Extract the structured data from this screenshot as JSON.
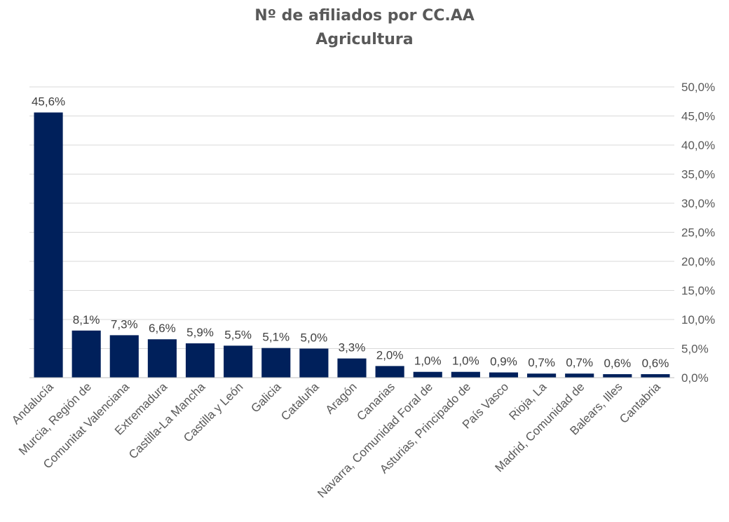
{
  "colors": {
    "bar": "#00205b",
    "grid": "#d9d9d9",
    "text": "#595959"
  },
  "chart_data": {
    "type": "bar",
    "title": "Nº de afiliados por CC.AA",
    "subtitle": "Agricultura",
    "xlabel": "",
    "ylabel": "",
    "y_axis_position": "right",
    "ylim": [
      0,
      50
    ],
    "y_ticks": [
      "0,0%",
      "5,0%",
      "10,0%",
      "15,0%",
      "20,0%",
      "25,0%",
      "30,0%",
      "35,0%",
      "40,0%",
      "45,0%",
      "50,0%"
    ],
    "grid": true,
    "legend": "none",
    "categories": [
      "Andalucía",
      "Murcia, Región de",
      "Comunitat Valenciana",
      "Extremadura",
      "Castilla-La Mancha",
      "Castilla y León",
      "Galicia",
      "Cataluña",
      "Aragón",
      "Canarias",
      "Navarra, Comunidad Foral de",
      "Asturias, Principado de",
      "País Vasco",
      "Rioja, La",
      "Madrid, Comunidad de",
      "Balears, Illes",
      "Cantabria"
    ],
    "values": [
      45.6,
      8.1,
      7.3,
      6.6,
      5.9,
      5.5,
      5.1,
      5.0,
      3.3,
      2.0,
      1.0,
      1.0,
      0.9,
      0.7,
      0.7,
      0.6,
      0.6
    ],
    "data_labels": [
      "45,6%",
      "8,1%",
      "7,3%",
      "6,6%",
      "5,9%",
      "5,5%",
      "5,1%",
      "5,0%",
      "3,3%",
      "2,0%",
      "1,0%",
      "1,0%",
      "0,9%",
      "0,7%",
      "0,7%",
      "0,6%",
      "0,6%"
    ]
  }
}
